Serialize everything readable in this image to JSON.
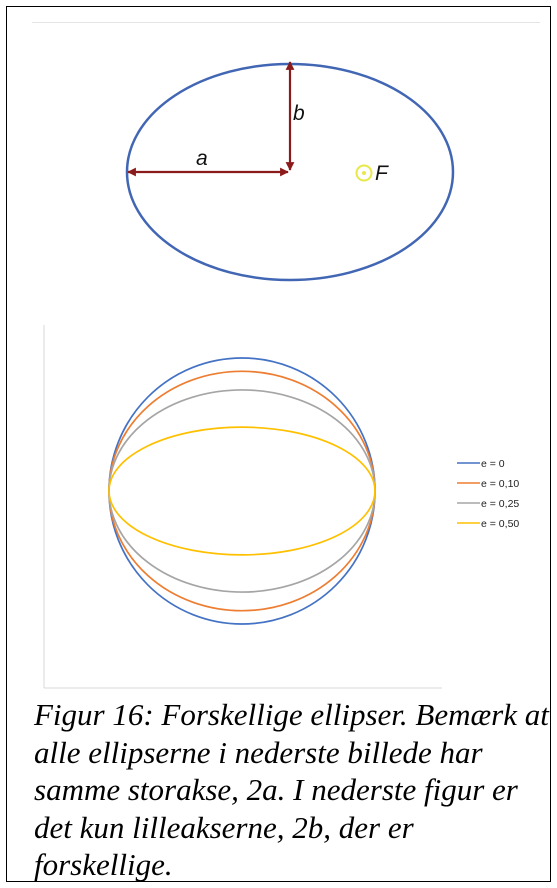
{
  "top_figure": {
    "label_a": "a",
    "label_b": "b",
    "focus_label": "F",
    "colors": {
      "ellipse": "#4166b4",
      "arrow": "#8b1a1a",
      "focus": "#e8e84a"
    }
  },
  "bottom_figure": {
    "legend": [
      {
        "name": "e = 0",
        "color": "#4472c4",
        "e": 0
      },
      {
        "name": "e = 0,10",
        "color": "#ed7d31",
        "e": 0.1
      },
      {
        "name": "e = 0,25",
        "color": "#a5a5a5",
        "e": 0.25
      },
      {
        "name": "e = 0,50",
        "color": "#ffc000",
        "e": 0.5
      }
    ]
  },
  "caption": "Figur 16: Forskellige ellipser. Bemærk at alle ellipserne i nederste billede har samme storakse, 2a. I nederste figur er det kun lilleakserne, 2b, der er forskellige."
}
